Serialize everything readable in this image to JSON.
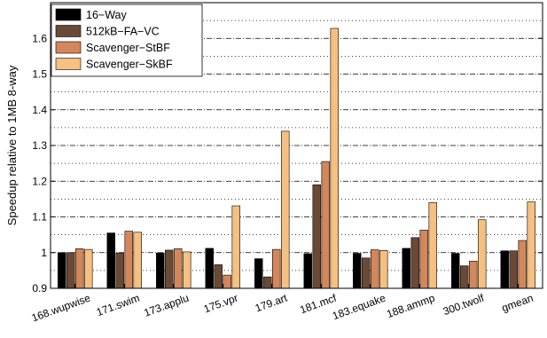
{
  "chart_data": {
    "type": "bar",
    "title": "",
    "xlabel": "",
    "ylabel": "Speedup relative to 1MB 8-way",
    "ylim": [
      0.9,
      1.7
    ],
    "yticks": [
      0.9,
      1,
      1.1,
      1.2,
      1.3,
      1.4,
      1.5,
      1.6
    ],
    "ytick_labels": [
      "0.9",
      "1",
      "1.1",
      "1.2",
      "1.3",
      "1.4",
      "1.5",
      "1.6"
    ],
    "grid": true,
    "legend_position": "top-left",
    "categories": [
      "168.wupwise",
      "171.swim",
      "173.applu",
      "175.vpr",
      "179.art",
      "181.mcf",
      "183.equake",
      "188.ammp",
      "300.twolf",
      "gmean"
    ],
    "series": [
      {
        "name": "16−Way",
        "color": "#000000",
        "values": [
          1.0,
          1.055,
          0.999,
          1.012,
          0.983,
          0.997,
          0.998,
          1.012,
          0.998,
          1.005
        ]
      },
      {
        "name": "512kB−FA−VC",
        "color": "#6b4a35",
        "values": [
          1.0,
          0.999,
          1.007,
          0.966,
          0.932,
          1.19,
          0.985,
          1.042,
          0.963,
          1.005
        ]
      },
      {
        "name": "Scavenger−StBF",
        "color": "#d4875a",
        "values": [
          1.011,
          1.06,
          1.011,
          0.937,
          1.009,
          1.255,
          1.008,
          1.063,
          0.976,
          1.034
        ]
      },
      {
        "name": "Scavenger−SkBF",
        "color": "#f5c080",
        "values": [
          1.009,
          1.057,
          1.002,
          1.131,
          1.34,
          1.628,
          1.006,
          1.14,
          1.092,
          1.142
        ]
      }
    ]
  }
}
